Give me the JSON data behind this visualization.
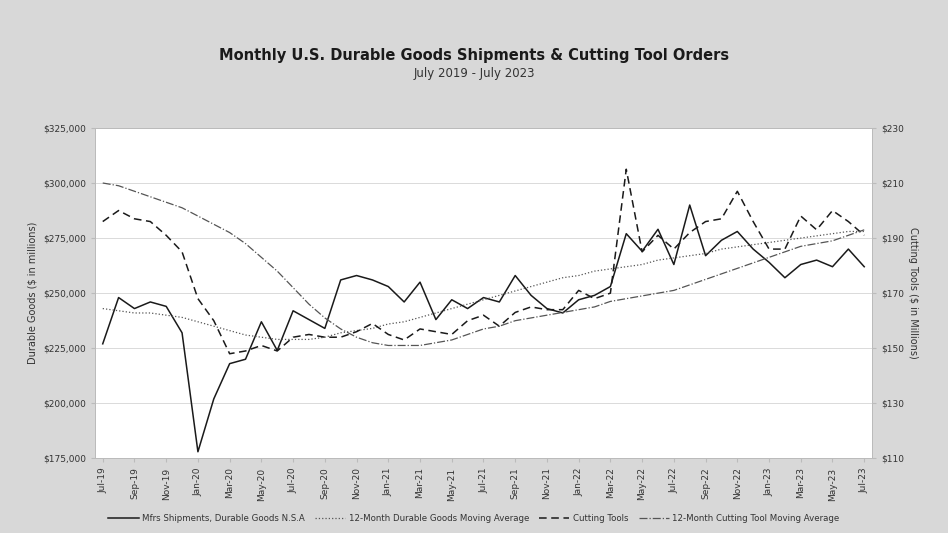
{
  "title": "Monthly U.S. Durable Goods Shipments & Cutting Tool Orders",
  "subtitle": "July 2019 - July 2023",
  "ylabel_left": "Durable Goods ($ in millions)",
  "ylabel_right": "Cutting Tools ($ in Millions)",
  "ylim_left": [
    175000,
    325000
  ],
  "ylim_right": [
    110,
    230
  ],
  "yticks_left": [
    175000,
    200000,
    225000,
    250000,
    275000,
    300000,
    325000
  ],
  "yticks_right": [
    110,
    130,
    150,
    170,
    190,
    210,
    230
  ],
  "ytick_labels_left": [
    "$175,000",
    "$200,000",
    "$225,000",
    "$250,000",
    "$275,000",
    "$300,000",
    "$325,000"
  ],
  "ytick_labels_right": [
    "$110",
    "$130",
    "$150",
    "$170",
    "$190",
    "$210",
    "$230"
  ],
  "legend_labels": [
    "Mfrs Shipments, Durable Goods N.S.A",
    "12-Month Durable Goods Moving Average",
    "Cutting Tools",
    "12-Month Cutting Tool Moving Average"
  ],
  "x_labels": [
    "Jul-19",
    "Sep-19",
    "Nov-19",
    "Jan-20",
    "Mar-20",
    "May-20",
    "Jul-20",
    "Sep-20",
    "Nov-20",
    "Jan-21",
    "Mar-21",
    "May-21",
    "Jul-21",
    "Sep-21",
    "Nov-21",
    "Jan-22",
    "Mar-22",
    "May-22",
    "Jul-22",
    "Sep-22",
    "Nov-22",
    "Jan-23",
    "Mar-23",
    "May-23",
    "Jul-23"
  ],
  "durable_goods": [
    227000,
    248000,
    243000,
    246000,
    244000,
    232000,
    178000,
    202000,
    218000,
    220000,
    237000,
    224000,
    242000,
    238000,
    234000,
    256000,
    258000,
    256000,
    253000,
    246000,
    255000,
    238000,
    247000,
    243000,
    248000,
    246000,
    258000,
    249000,
    243000,
    241000,
    247000,
    249000,
    253000,
    277000,
    269000,
    279000,
    263000,
    290000,
    267000,
    274000,
    278000,
    270000,
    264000,
    257000,
    263000,
    265000,
    262000,
    270000,
    262000
  ],
  "durable_goods_ma": [
    243000,
    242000,
    241000,
    241000,
    240000,
    239000,
    237000,
    235000,
    233000,
    231000,
    230000,
    229000,
    229000,
    229000,
    230000,
    232000,
    233000,
    234000,
    236000,
    237000,
    239000,
    241000,
    243000,
    245000,
    247000,
    249000,
    251000,
    253000,
    255000,
    257000,
    258000,
    260000,
    261000,
    262000,
    263000,
    265000,
    266000,
    267000,
    268000,
    270000,
    271000,
    272000,
    273000,
    274000,
    275000,
    276000,
    277000,
    278000,
    278000
  ],
  "cutting_tools": [
    196,
    200,
    197,
    196,
    191,
    185,
    168,
    160,
    148,
    149,
    151,
    149,
    154,
    155,
    154,
    154,
    156,
    159,
    155,
    153,
    157,
    156,
    155,
    160,
    162,
    158,
    163,
    165,
    164,
    164,
    171,
    168,
    170,
    215,
    185,
    191,
    186,
    192,
    196,
    197,
    207,
    196,
    186,
    186,
    198,
    193,
    200,
    196,
    191
  ],
  "cutting_tools_ma": [
    210,
    209,
    207,
    205,
    203,
    201,
    198,
    195,
    192,
    188,
    183,
    178,
    172,
    166,
    161,
    157,
    154,
    152,
    151,
    151,
    151,
    152,
    153,
    155,
    157,
    158,
    160,
    161,
    162,
    163,
    164,
    165,
    167,
    168,
    169,
    170,
    171,
    173,
    175,
    177,
    179,
    181,
    183,
    185,
    187,
    188,
    189,
    191,
    193
  ]
}
